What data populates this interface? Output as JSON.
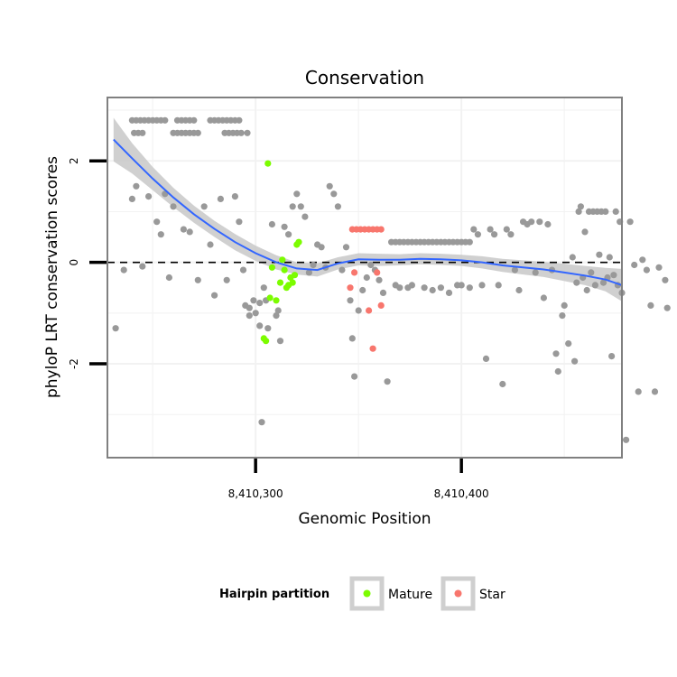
{
  "chart_data": {
    "type": "scatter",
    "title": "Conservation",
    "xlabel": "Genomic Position",
    "ylabel": "phyloP LRT conservation scores",
    "xlim": [
      8410228,
      8410478
    ],
    "ylim": [
      -3.85,
      3.25
    ],
    "x_ticks": [
      {
        "value": 8410300,
        "label": "8,410,300"
      },
      {
        "value": 8410400,
        "label": "8,410,400"
      }
    ],
    "y_ticks": [
      {
        "value": -2,
        "label": "-2"
      },
      {
        "value": 0,
        "label": "0"
      },
      {
        "value": 2,
        "label": "2"
      }
    ],
    "reference_line": {
      "y": 0,
      "style": "dashed"
    },
    "legend": {
      "title": "Hairpin partition",
      "position": "bottom",
      "entries": [
        {
          "label": "Mature",
          "color": "#7CFC00"
        },
        {
          "label": "Star",
          "color": "#F8766D"
        }
      ]
    },
    "colors": {
      "other": "#999999",
      "Mature": "#7CFC00",
      "Star": "#F8766D",
      "smooth": "#3366FF",
      "ribbon": "#C8C8C8",
      "panel_border": "#808080",
      "grid": "#F2F2F2"
    },
    "smooth": {
      "x": [
        8410231,
        8410240,
        8410250,
        8410260,
        8410270,
        8410280,
        8410290,
        8410300,
        8410310,
        8410320,
        8410330,
        8410340,
        8410350,
        8410360,
        8410370,
        8410380,
        8410390,
        8410400,
        8410410,
        8410420,
        8410430,
        8410440,
        8410450,
        8410460,
        8410470,
        8410478
      ],
      "y": [
        2.42,
        2.05,
        1.65,
        1.28,
        0.95,
        0.66,
        0.4,
        0.18,
        0.0,
        -0.12,
        -0.15,
        -0.02,
        0.06,
        0.05,
        0.05,
        0.07,
        0.06,
        0.04,
        0.0,
        -0.06,
        -0.1,
        -0.14,
        -0.2,
        -0.26,
        -0.34,
        -0.45
      ],
      "upper": [
        2.85,
        2.35,
        1.88,
        1.47,
        1.12,
        0.82,
        0.56,
        0.33,
        0.14,
        0.0,
        -0.02,
        0.1,
        0.18,
        0.17,
        0.16,
        0.18,
        0.17,
        0.15,
        0.12,
        0.07,
        0.04,
        0.01,
        -0.03,
        -0.07,
        -0.11,
        -0.13
      ],
      "lower": [
        1.99,
        1.75,
        1.42,
        1.09,
        0.78,
        0.5,
        0.24,
        0.03,
        -0.14,
        -0.24,
        -0.28,
        -0.14,
        -0.06,
        -0.07,
        -0.06,
        -0.04,
        -0.05,
        -0.07,
        -0.12,
        -0.19,
        -0.24,
        -0.29,
        -0.37,
        -0.45,
        -0.57,
        -0.77
      ]
    },
    "points": {
      "other": [
        [
          8410240,
          2.8
        ],
        [
          8410242,
          2.8
        ],
        [
          8410244,
          2.8
        ],
        [
          8410246,
          2.8
        ],
        [
          8410248,
          2.8
        ],
        [
          8410250,
          2.8
        ],
        [
          8410252,
          2.8
        ],
        [
          8410254,
          2.8
        ],
        [
          8410256,
          2.8
        ],
        [
          8410262,
          2.8
        ],
        [
          8410264,
          2.8
        ],
        [
          8410266,
          2.8
        ],
        [
          8410268,
          2.8
        ],
        [
          8410270,
          2.8
        ],
        [
          8410278,
          2.8
        ],
        [
          8410280,
          2.8
        ],
        [
          8410282,
          2.8
        ],
        [
          8410284,
          2.8
        ],
        [
          8410286,
          2.8
        ],
        [
          8410288,
          2.8
        ],
        [
          8410290,
          2.8
        ],
        [
          8410292,
          2.8
        ],
        [
          8410241,
          2.55
        ],
        [
          8410243,
          2.55
        ],
        [
          8410245,
          2.55
        ],
        [
          8410260,
          2.55
        ],
        [
          8410262,
          2.55
        ],
        [
          8410264,
          2.55
        ],
        [
          8410266,
          2.55
        ],
        [
          8410268,
          2.55
        ],
        [
          8410270,
          2.55
        ],
        [
          8410272,
          2.55
        ],
        [
          8410285,
          2.55
        ],
        [
          8410287,
          2.55
        ],
        [
          8410289,
          2.55
        ],
        [
          8410291,
          2.55
        ],
        [
          8410293,
          2.55
        ],
        [
          8410296,
          2.55
        ],
        [
          8410232,
          -1.3
        ],
        [
          8410236,
          -0.15
        ],
        [
          8410240,
          1.25
        ],
        [
          8410242,
          1.5
        ],
        [
          8410245,
          -0.08
        ],
        [
          8410248,
          1.3
        ],
        [
          8410252,
          0.8
        ],
        [
          8410254,
          0.55
        ],
        [
          8410256,
          1.35
        ],
        [
          8410258,
          -0.3
        ],
        [
          8410260,
          1.1
        ],
        [
          8410265,
          0.65
        ],
        [
          8410268,
          0.6
        ],
        [
          8410272,
          -0.35
        ],
        [
          8410275,
          1.1
        ],
        [
          8410278,
          0.35
        ],
        [
          8410280,
          -0.65
        ],
        [
          8410283,
          1.25
        ],
        [
          8410286,
          -0.35
        ],
        [
          8410290,
          1.3
        ],
        [
          8410292,
          0.8
        ],
        [
          8410294,
          -0.15
        ],
        [
          8410295,
          -0.85
        ],
        [
          8410297,
          -0.9
        ],
        [
          8410297,
          -1.05
        ],
        [
          8410299,
          -0.75
        ],
        [
          8410302,
          -0.8
        ],
        [
          8410300,
          -1.0
        ],
        [
          8410302,
          -1.25
        ],
        [
          8410304,
          -0.5
        ],
        [
          8410305,
          -0.75
        ],
        [
          8410306,
          -1.3
        ],
        [
          8410308,
          0.75
        ],
        [
          8410310,
          -1.05
        ],
        [
          8410311,
          -0.95
        ],
        [
          8410312,
          -1.55
        ],
        [
          8410314,
          0.7
        ],
        [
          8410316,
          0.55
        ],
        [
          8410318,
          1.1
        ],
        [
          8410320,
          1.35
        ],
        [
          8410322,
          1.1
        ],
        [
          8410303,
          -3.15
        ],
        [
          8410324,
          0.9
        ],
        [
          8410326,
          -0.2
        ],
        [
          8410328,
          -0.05
        ],
        [
          8410330,
          0.35
        ],
        [
          8410332,
          0.3
        ],
        [
          8410334,
          -0.1
        ],
        [
          8410336,
          1.5
        ],
        [
          8410338,
          1.35
        ],
        [
          8410340,
          1.1
        ],
        [
          8410342,
          -0.15
        ],
        [
          8410344,
          0.3
        ],
        [
          8410346,
          -0.75
        ],
        [
          8410347,
          -1.5
        ],
        [
          8410348,
          -2.25
        ],
        [
          8410350,
          -0.95
        ],
        [
          8410352,
          -0.55
        ],
        [
          8410354,
          -0.3
        ],
        [
          8410356,
          -0.05
        ],
        [
          8410358,
          -0.15
        ],
        [
          8410360,
          -0.35
        ],
        [
          8410362,
          -0.6
        ],
        [
          8410364,
          -2.35
        ],
        [
          8410366,
          0.4
        ],
        [
          8410368,
          0.4
        ],
        [
          8410370,
          0.4
        ],
        [
          8410372,
          0.4
        ],
        [
          8410374,
          0.4
        ],
        [
          8410376,
          0.4
        ],
        [
          8410378,
          0.4
        ],
        [
          8410380,
          0.4
        ],
        [
          8410382,
          0.4
        ],
        [
          8410384,
          0.4
        ],
        [
          8410386,
          0.4
        ],
        [
          8410388,
          0.4
        ],
        [
          8410390,
          0.4
        ],
        [
          8410392,
          0.4
        ],
        [
          8410394,
          0.4
        ],
        [
          8410396,
          0.4
        ],
        [
          8410398,
          0.4
        ],
        [
          8410400,
          0.4
        ],
        [
          8410402,
          0.4
        ],
        [
          8410404,
          0.4
        ],
        [
          8410368,
          -0.45
        ],
        [
          8410370,
          -0.5
        ],
        [
          8410374,
          -0.5
        ],
        [
          8410376,
          -0.45
        ],
        [
          8410382,
          -0.5
        ],
        [
          8410386,
          -0.55
        ],
        [
          8410390,
          -0.5
        ],
        [
          8410394,
          -0.6
        ],
        [
          8410398,
          -0.45
        ],
        [
          8410400,
          -0.45
        ],
        [
          8410404,
          -0.5
        ],
        [
          8410406,
          0.65
        ],
        [
          8410408,
          0.55
        ],
        [
          8410410,
          -0.45
        ],
        [
          8410412,
          -1.9
        ],
        [
          8410414,
          0.65
        ],
        [
          8410416,
          0.55
        ],
        [
          8410418,
          -0.45
        ],
        [
          8410420,
          -2.4
        ],
        [
          8410422,
          0.65
        ],
        [
          8410424,
          0.55
        ],
        [
          8410426,
          -0.15
        ],
        [
          8410428,
          -0.55
        ],
        [
          8410430,
          0.8
        ],
        [
          8410432,
          0.75
        ],
        [
          8410434,
          0.8
        ],
        [
          8410436,
          -0.2
        ],
        [
          8410438,
          0.8
        ],
        [
          8410440,
          -0.7
        ],
        [
          8410442,
          0.75
        ],
        [
          8410444,
          -0.15
        ],
        [
          8410446,
          -1.8
        ],
        [
          8410447,
          -2.15
        ],
        [
          8410449,
          -1.05
        ],
        [
          8410450,
          -0.85
        ],
        [
          8410452,
          -1.6
        ],
        [
          8410454,
          0.1
        ],
        [
          8410455,
          -1.95
        ],
        [
          8410457,
          1.0
        ],
        [
          8410458,
          1.1
        ],
        [
          8410460,
          0.6
        ],
        [
          8410462,
          1.0
        ],
        [
          8410464,
          1.0
        ],
        [
          8410466,
          1.0
        ],
        [
          8410468,
          1.0
        ],
        [
          8410470,
          1.0
        ],
        [
          8410472,
          0.1
        ],
        [
          8410474,
          -0.25
        ],
        [
          8410476,
          -0.45
        ],
        [
          8410478,
          -0.6
        ],
        [
          8410480,
          -3.5
        ],
        [
          8410482,
          0.8
        ],
        [
          8410484,
          -0.05
        ],
        [
          8410486,
          -2.55
        ],
        [
          8410488,
          0.05
        ],
        [
          8410490,
          -0.15
        ],
        [
          8410492,
          -0.85
        ],
        [
          8410494,
          -2.55
        ],
        [
          8410496,
          -0.1
        ],
        [
          8410499,
          -0.35
        ],
        [
          8410500,
          -0.9
        ],
        [
          8410456,
          -0.4
        ],
        [
          8410459,
          -0.3
        ],
        [
          8410461,
          -0.55
        ],
        [
          8410463,
          -0.2
        ],
        [
          8410465,
          -0.45
        ],
        [
          8410467,
          0.15
        ],
        [
          8410469,
          -0.4
        ],
        [
          8410471,
          -0.3
        ],
        [
          8410473,
          -1.85
        ],
        [
          8410475,
          1.0
        ],
        [
          8410477,
          0.8
        ]
      ],
      "Mature": [
        [
          8410306,
          1.95
        ],
        [
          8410304,
          -1.5
        ],
        [
          8410305,
          -1.55
        ],
        [
          8410307,
          -0.7
        ],
        [
          8410308,
          -0.1
        ],
        [
          8410310,
          -0.75
        ],
        [
          8410312,
          -0.4
        ],
        [
          8410313,
          0.05
        ],
        [
          8410314,
          -0.15
        ],
        [
          8410315,
          -0.5
        ],
        [
          8410316,
          -0.45
        ],
        [
          8410317,
          -0.3
        ],
        [
          8410318,
          -0.4
        ],
        [
          8410319,
          -0.25
        ],
        [
          8410320,
          0.35
        ],
        [
          8410321,
          0.4
        ]
      ],
      "Star": [
        [
          8410347,
          0.65
        ],
        [
          8410349,
          0.65
        ],
        [
          8410351,
          0.65
        ],
        [
          8410353,
          0.65
        ],
        [
          8410355,
          0.65
        ],
        [
          8410357,
          0.65
        ],
        [
          8410359,
          0.65
        ],
        [
          8410361,
          0.65
        ],
        [
          8410346,
          -0.5
        ],
        [
          8410348,
          -0.2
        ],
        [
          8410355,
          -0.95
        ],
        [
          8410357,
          -1.7
        ],
        [
          8410359,
          -0.2
        ],
        [
          8410361,
          -0.85
        ]
      ]
    }
  }
}
